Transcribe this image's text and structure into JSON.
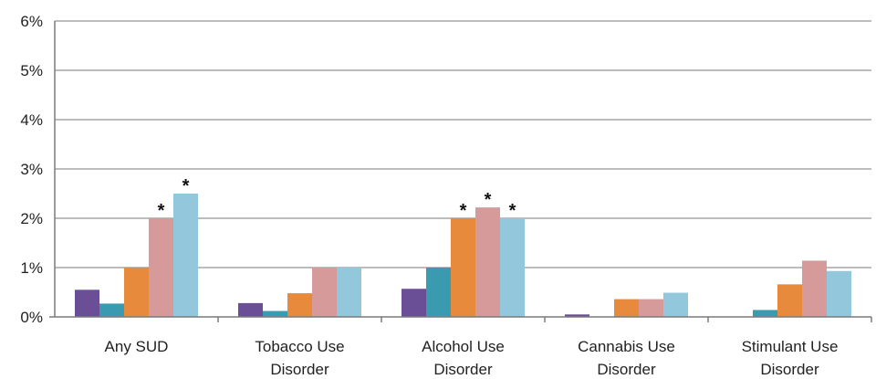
{
  "chart_data": {
    "type": "bar",
    "title": "",
    "xlabel": "",
    "ylabel": "",
    "ylim": [
      0,
      6
    ],
    "y_ticks": [
      "0%",
      "1%",
      "2%",
      "3%",
      "4%",
      "5%",
      "6%"
    ],
    "y_tick_values": [
      0,
      1,
      2,
      3,
      4,
      5,
      6
    ],
    "grid": true,
    "legend": "none",
    "categories": [
      [
        "Any SUD"
      ],
      [
        "Tobacco Use",
        "Disorder"
      ],
      [
        "Alcohol Use",
        "Disorder"
      ],
      [
        "Cannabis Use",
        "Disorder"
      ],
      [
        "Stimulant Use",
        "Disorder"
      ]
    ],
    "series": [
      {
        "color": "#6b4f96",
        "values": [
          0.55,
          0.28,
          0.57,
          0.05,
          0.0
        ]
      },
      {
        "color": "#3a9ab0",
        "values": [
          0.27,
          0.12,
          1.0,
          0.0,
          0.14
        ]
      },
      {
        "color": "#e88a3c",
        "values": [
          1.0,
          0.48,
          2.0,
          0.36,
          0.66
        ]
      },
      {
        "color": "#d69a9b",
        "values": [
          2.0,
          1.0,
          2.22,
          0.36,
          1.14
        ]
      },
      {
        "color": "#92c7dc",
        "values": [
          2.5,
          1.0,
          2.0,
          0.49,
          0.93
        ]
      }
    ],
    "significance_marker": "*",
    "significant": [
      [
        false,
        false,
        false,
        true,
        true
      ],
      [
        false,
        false,
        false,
        false,
        false
      ],
      [
        false,
        false,
        true,
        true,
        true
      ],
      [
        false,
        false,
        false,
        false,
        false
      ],
      [
        false,
        false,
        false,
        false,
        false
      ]
    ]
  }
}
